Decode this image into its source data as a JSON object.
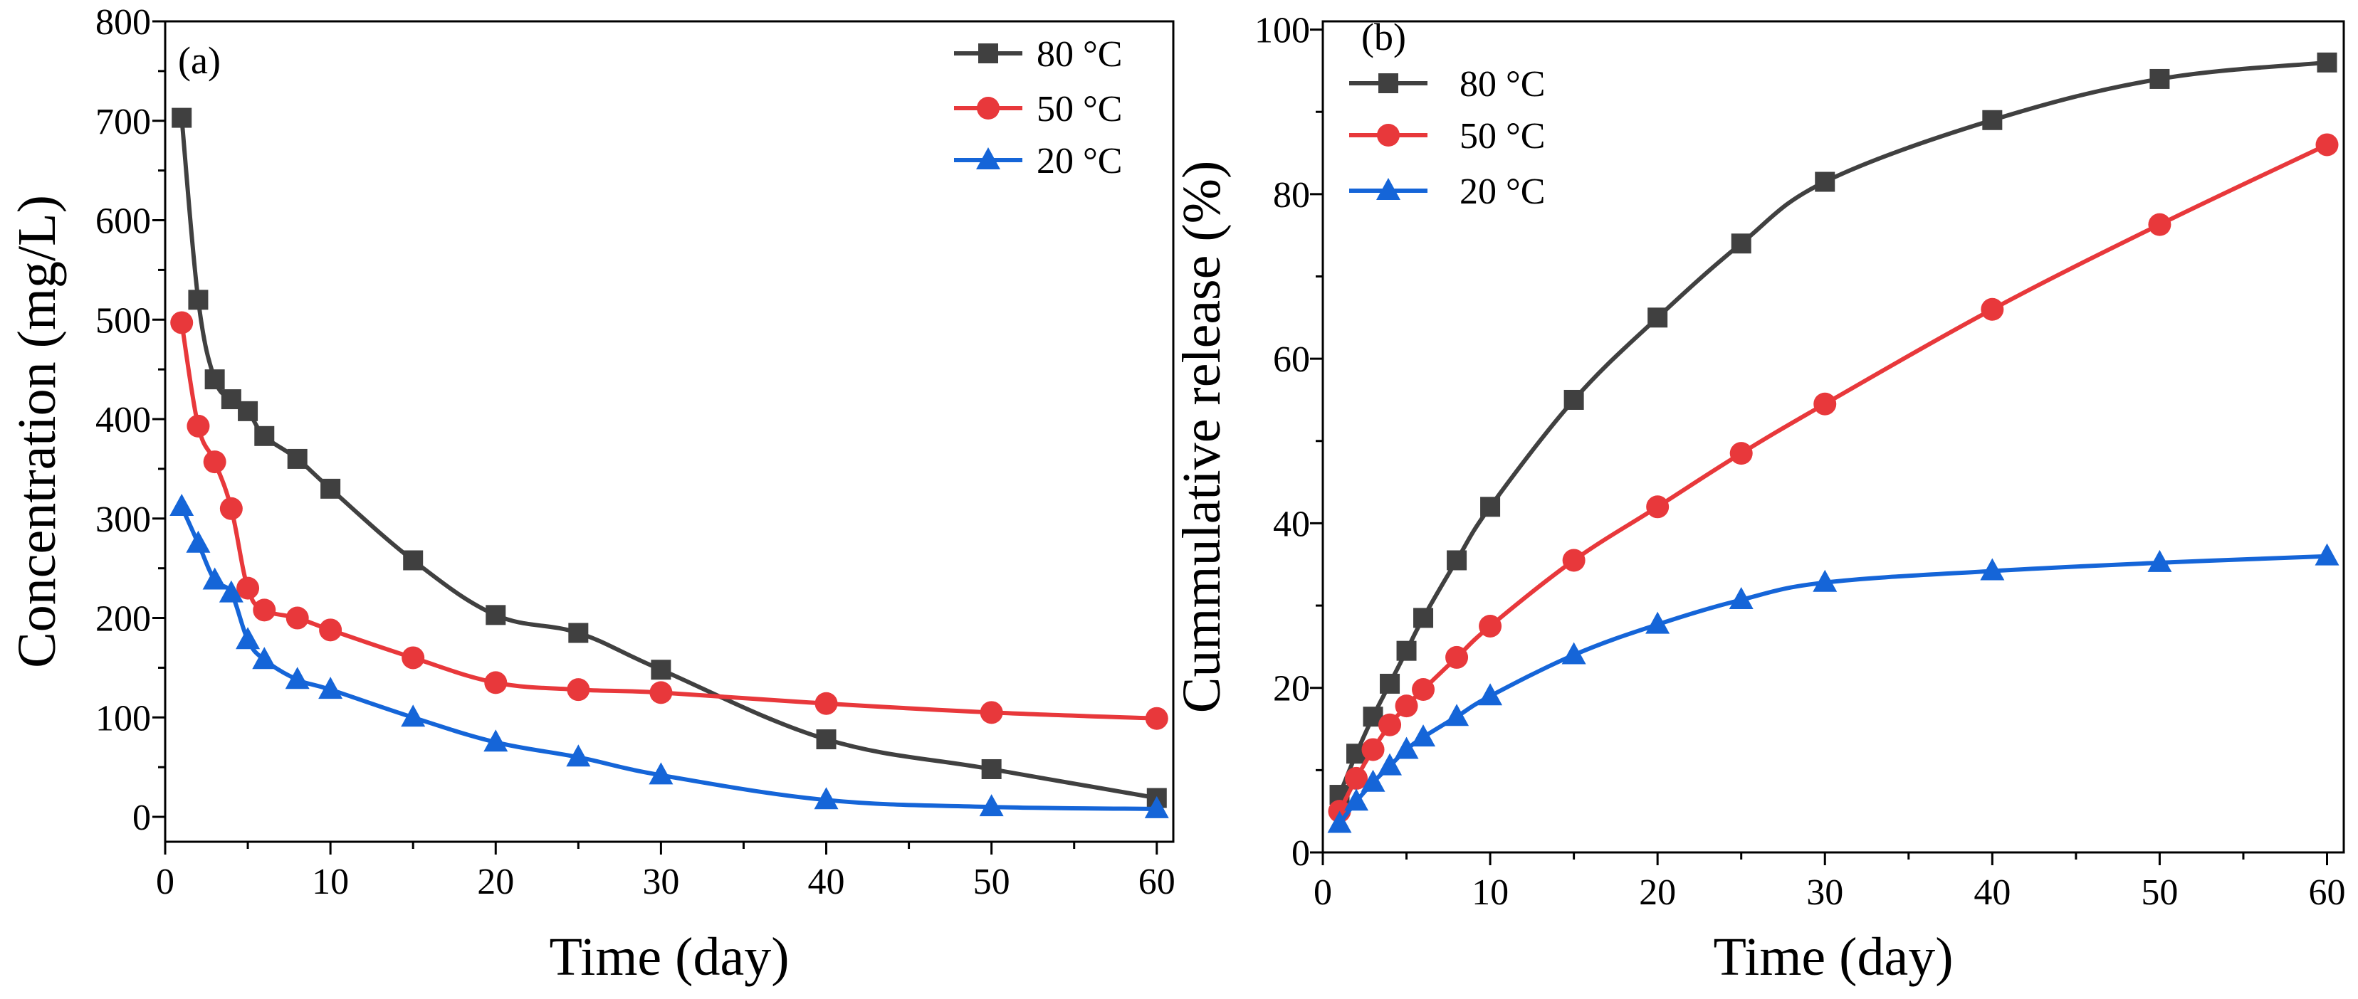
{
  "chart_data": [
    {
      "panel": "(a)",
      "type": "line",
      "xlabel": "Time (day)",
      "ylabel": "Concentration (mg/L)",
      "xlim": [
        0,
        61
      ],
      "ylim": [
        -25,
        800
      ],
      "xticks": [
        0,
        10,
        20,
        30,
        40,
        50,
        60
      ],
      "yticks": [
        0,
        100,
        200,
        300,
        400,
        500,
        600,
        700,
        800
      ],
      "legend_position": "top-right",
      "series": [
        {
          "name": "80 °C",
          "color": "#404040",
          "marker": "square",
          "x": [
            1,
            2,
            3,
            4,
            5,
            6,
            8,
            10,
            15,
            20,
            25,
            30,
            40,
            50,
            60
          ],
          "y": [
            703,
            520,
            440,
            420,
            408,
            383,
            360,
            330,
            258,
            203,
            185,
            148,
            78,
            48,
            19
          ]
        },
        {
          "name": "50 °C",
          "color": "#e8383b",
          "marker": "circle",
          "x": [
            1,
            2,
            3,
            4,
            5,
            6,
            8,
            10,
            15,
            20,
            25,
            30,
            40,
            50,
            60
          ],
          "y": [
            497,
            393,
            357,
            310,
            230,
            208,
            200,
            188,
            160,
            135,
            128,
            125,
            114,
            105,
            99
          ]
        },
        {
          "name": "20 °C",
          "color": "#1565d8",
          "marker": "triangle",
          "x": [
            1,
            2,
            3,
            4,
            5,
            6,
            8,
            10,
            15,
            20,
            25,
            30,
            40,
            50,
            60
          ],
          "y": [
            312,
            275,
            238,
            225,
            178,
            158,
            138,
            128,
            100,
            75,
            60,
            42,
            17,
            10,
            8
          ]
        }
      ]
    },
    {
      "panel": "(b)",
      "type": "line",
      "xlabel": "Time (day)",
      "ylabel": "Cummulative release (%)",
      "xlim": [
        0,
        61
      ],
      "ylim": [
        0,
        101
      ],
      "xticks": [
        0,
        10,
        20,
        30,
        40,
        50,
        60
      ],
      "yticks": [
        0,
        20,
        40,
        60,
        80,
        100
      ],
      "legend_position": "top-left",
      "series": [
        {
          "name": "80 °C",
          "color": "#404040",
          "marker": "square",
          "x": [
            1,
            2,
            3,
            4,
            5,
            6,
            8,
            10,
            15,
            20,
            25,
            30,
            40,
            50,
            60
          ],
          "y": [
            7,
            12,
            16.5,
            20.5,
            24.5,
            28.5,
            35.5,
            42,
            55,
            65,
            74,
            81.5,
            89,
            94,
            96
          ]
        },
        {
          "name": "50 °C",
          "color": "#e8383b",
          "marker": "circle",
          "x": [
            1,
            2,
            3,
            4,
            5,
            6,
            8,
            10,
            15,
            20,
            25,
            30,
            40,
            50,
            60
          ],
          "y": [
            5,
            9,
            12.5,
            15.5,
            17.8,
            19.8,
            23.7,
            27.5,
            35.5,
            42,
            48.5,
            54.5,
            66,
            76.3,
            86
          ]
        },
        {
          "name": "20 °C",
          "color": "#1565d8",
          "marker": "triangle",
          "x": [
            1,
            2,
            3,
            4,
            5,
            6,
            8,
            10,
            15,
            20,
            25,
            30,
            40,
            50,
            60
          ],
          "y": [
            3.5,
            6.2,
            8.5,
            10.5,
            12.5,
            14,
            16.5,
            19,
            24,
            27.7,
            30.7,
            32.8,
            34.2,
            35.2,
            36
          ]
        }
      ]
    }
  ]
}
